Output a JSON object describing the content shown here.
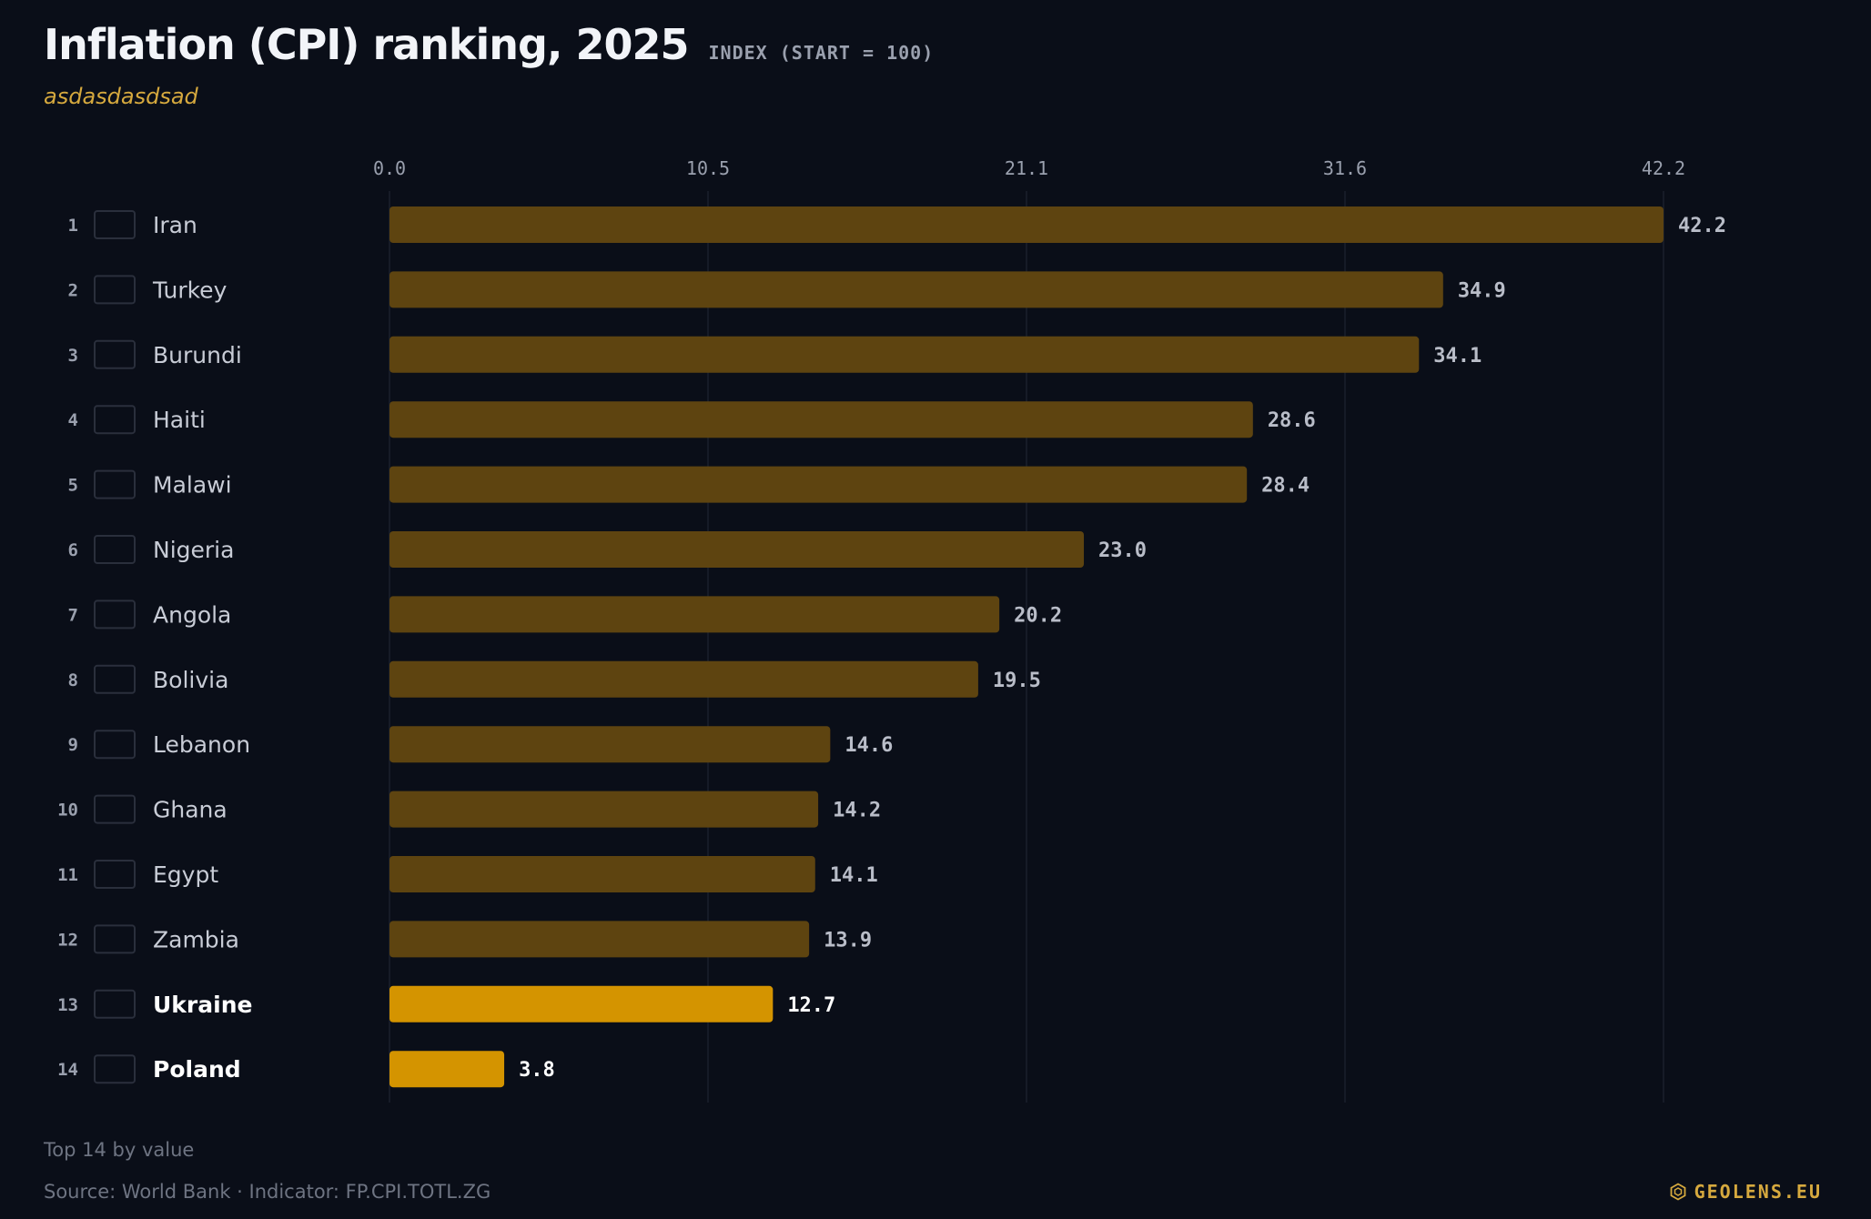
{
  "header": {
    "title": "Inflation (CPI) ranking, 2025",
    "index_note": "INDEX (START = 100)",
    "subtitle": "asdasdasdsad"
  },
  "footer": {
    "note": "Top 14 by value",
    "source": "Source: World Bank · Indicator: FP.CPI.TOTL.ZG",
    "brand": "GEOLENS.EU",
    "brand_icon": "hexagon-logo-icon"
  },
  "colors": {
    "background": "#0a0e18",
    "bar_default": "#5e4410",
    "bar_highlight": "#d49400",
    "label_default": "#c8ccd6",
    "label_highlight": "#ffffff",
    "value_default": "#b9bdc8",
    "value_highlight": "#ffffff",
    "rank": "#9aa0ae",
    "axis_tick": "#9aa0ae",
    "gridline": "#161b27",
    "flag_border": "#2a2f3c",
    "accent": "#d6a93e"
  },
  "chart_data": {
    "type": "bar",
    "orientation": "horizontal",
    "xlim": [
      0,
      42.2
    ],
    "x_ticks": [
      "0.0",
      "10.5",
      "21.1",
      "31.6",
      "42.2"
    ],
    "tick_values": [
      0,
      10.55,
      21.1,
      31.65,
      42.2
    ],
    "grid": true,
    "rows": [
      {
        "rank": "1",
        "country": "Iran",
        "value": 42.2,
        "label": "42.2",
        "highlight": false
      },
      {
        "rank": "2",
        "country": "Turkey",
        "value": 34.9,
        "label": "34.9",
        "highlight": false
      },
      {
        "rank": "3",
        "country": "Burundi",
        "value": 34.1,
        "label": "34.1",
        "highlight": false
      },
      {
        "rank": "4",
        "country": "Haiti",
        "value": 28.6,
        "label": "28.6",
        "highlight": false
      },
      {
        "rank": "5",
        "country": "Malawi",
        "value": 28.4,
        "label": "28.4",
        "highlight": false
      },
      {
        "rank": "6",
        "country": "Nigeria",
        "value": 23.0,
        "label": "23.0",
        "highlight": false
      },
      {
        "rank": "7",
        "country": "Angola",
        "value": 20.2,
        "label": "20.2",
        "highlight": false
      },
      {
        "rank": "8",
        "country": "Bolivia",
        "value": 19.5,
        "label": "19.5",
        "highlight": false
      },
      {
        "rank": "9",
        "country": "Lebanon",
        "value": 14.6,
        "label": "14.6",
        "highlight": false
      },
      {
        "rank": "10",
        "country": "Ghana",
        "value": 14.2,
        "label": "14.2",
        "highlight": false
      },
      {
        "rank": "11",
        "country": "Egypt",
        "value": 14.1,
        "label": "14.1",
        "highlight": false
      },
      {
        "rank": "12",
        "country": "Zambia",
        "value": 13.9,
        "label": "13.9",
        "highlight": false
      },
      {
        "rank": "13",
        "country": "Ukraine",
        "value": 12.7,
        "label": "12.7",
        "highlight": true
      },
      {
        "rank": "14",
        "country": "Poland",
        "value": 3.8,
        "label": "3.8",
        "highlight": true
      }
    ]
  }
}
